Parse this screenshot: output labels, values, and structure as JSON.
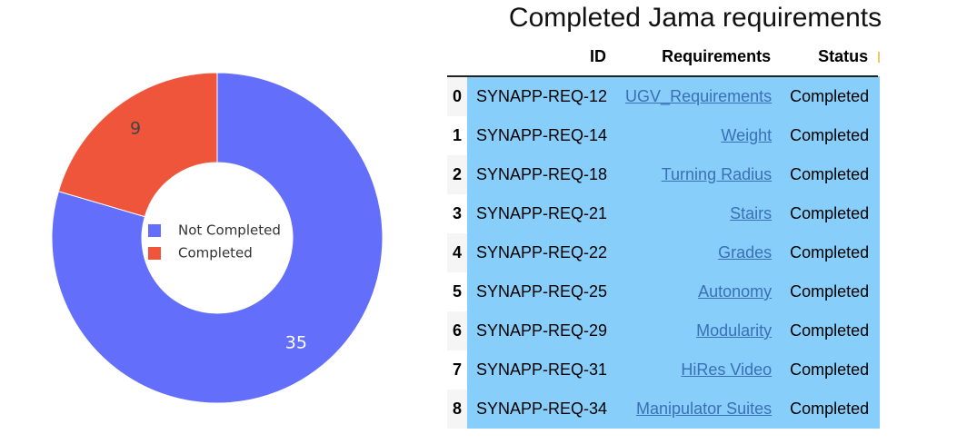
{
  "chart_data": {
    "type": "pie",
    "hole": true,
    "categories": [
      "Not Completed",
      "Completed"
    ],
    "values": [
      35,
      9
    ],
    "colors": [
      "#636efa",
      "#ef553b"
    ],
    "legend": {
      "position": "center",
      "entries": [
        "Not Completed",
        "Completed"
      ]
    }
  },
  "table": {
    "title": "Completed Jama requirements",
    "columns": [
      "ID",
      "Requirements",
      "Status"
    ],
    "rows": [
      {
        "index": "0",
        "id": "SYNAPP-REQ-12",
        "requirement": "UGV_Requirements",
        "status": "Completed"
      },
      {
        "index": "1",
        "id": "SYNAPP-REQ-14",
        "requirement": "Weight",
        "status": "Completed"
      },
      {
        "index": "2",
        "id": "SYNAPP-REQ-18",
        "requirement": "Turning Radius",
        "status": "Completed"
      },
      {
        "index": "3",
        "id": "SYNAPP-REQ-21",
        "requirement": "Stairs",
        "status": "Completed"
      },
      {
        "index": "4",
        "id": "SYNAPP-REQ-22",
        "requirement": "Grades",
        "status": "Completed"
      },
      {
        "index": "5",
        "id": "SYNAPP-REQ-25",
        "requirement": "Autonomy",
        "status": "Completed"
      },
      {
        "index": "6",
        "id": "SYNAPP-REQ-29",
        "requirement": "Modularity",
        "status": "Completed"
      },
      {
        "index": "7",
        "id": "SYNAPP-REQ-31",
        "requirement": "HiRes Video",
        "status": "Completed"
      },
      {
        "index": "8",
        "id": "SYNAPP-REQ-34",
        "requirement": "Manipulator Suites",
        "status": "Completed"
      }
    ]
  }
}
